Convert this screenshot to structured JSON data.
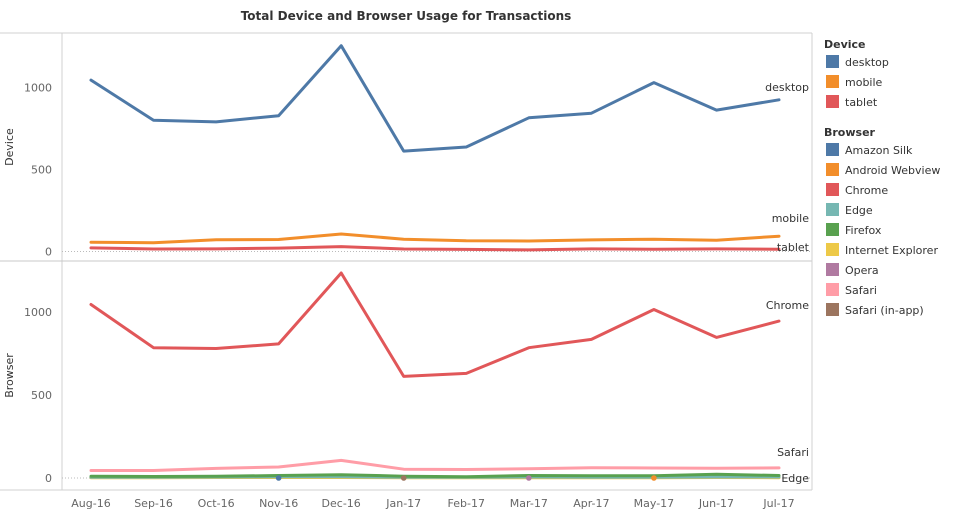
{
  "chart_data": {
    "type": "line",
    "title": "Total Device and Browser Usage for Transactions",
    "categories": [
      "Aug-16",
      "Sep-16",
      "Oct-16",
      "Nov-16",
      "Dec-16",
      "Jan-17",
      "Feb-17",
      "Mar-17",
      "Apr-17",
      "May-17",
      "Jun-17",
      "Jul-17"
    ],
    "panels": [
      {
        "ylabel": "Device",
        "ylim": [
          0,
          1330
        ],
        "yticks": [
          0,
          500,
          1000
        ],
        "series": [
          {
            "name": "desktop",
            "color": "#4e79a7",
            "values": [
              1045,
              800,
              790,
              828,
              1255,
              612,
              637,
              815,
              843,
              1030,
              862,
              925
            ]
          },
          {
            "name": "mobile",
            "color": "#f28e2b",
            "values": [
              57,
              53,
              72,
              73,
              107,
              75,
              65,
              64,
              71,
              75,
              69,
              93
            ]
          },
          {
            "name": "tablet",
            "color": "#e15759",
            "values": [
              22,
              15,
              16,
              21,
              30,
              15,
              13,
              10,
              16,
              14,
              16,
              14
            ]
          }
        ],
        "end_labels": [
          "desktop",
          "mobile",
          "tablet"
        ]
      },
      {
        "ylabel": "Browser",
        "ylim": [
          0,
          1250
        ],
        "yticks": [
          0,
          500,
          1000
        ],
        "series": [
          {
            "name": "Chrome",
            "color": "#e15759",
            "values": [
              1045,
              785,
              780,
              808,
              1235,
              612,
              630,
              785,
              835,
              1015,
              847,
              945
            ]
          },
          {
            "name": "Safari",
            "color": "#ff9da7",
            "values": [
              45,
              45,
              58,
              66,
              106,
              53,
              51,
              56,
              62,
              60,
              59,
              61
            ]
          },
          {
            "name": "Firefox",
            "color": "#59a14f",
            "values": [
              10,
              9,
              10,
              15,
              20,
              11,
              8,
              15,
              13,
              13,
              22,
              15
            ]
          },
          {
            "name": "Edge",
            "color": "#76b7b2",
            "values": [
              5,
              5,
              6,
              7,
              8,
              4,
              4,
              6,
              5,
              5,
              6,
              6
            ]
          },
          {
            "name": "Internet Explorer",
            "color": "#edc948",
            "values": [
              2,
              2,
              3,
              3,
              3,
              2,
              2,
              2,
              2,
              2,
              3,
              2
            ]
          }
        ],
        "markers": [
          {
            "series": "Amazon Silk",
            "color": "#4e79a7",
            "x": "Nov-16",
            "y": 0
          },
          {
            "series": "Android Webview",
            "color": "#f28e2b",
            "x": "May-17",
            "y": 0
          },
          {
            "series": "Opera",
            "color": "#b07aa1",
            "x": "Mar-17",
            "y": 0
          },
          {
            "series": "Safari (in-app)",
            "color": "#9c755f",
            "x": "Jan-17",
            "y": 0
          }
        ],
        "end_labels": [
          "Chrome",
          "Safari",
          "Edge"
        ]
      }
    ],
    "legends": [
      {
        "title": "Device",
        "items": [
          {
            "label": "desktop",
            "color": "#4e79a7"
          },
          {
            "label": "mobile",
            "color": "#f28e2b"
          },
          {
            "label": "tablet",
            "color": "#e15759"
          }
        ]
      },
      {
        "title": "Browser",
        "items": [
          {
            "label": "Amazon Silk",
            "color": "#4e79a7"
          },
          {
            "label": "Android Webview",
            "color": "#f28e2b"
          },
          {
            "label": "Chrome",
            "color": "#e15759"
          },
          {
            "label": "Edge",
            "color": "#76b7b2"
          },
          {
            "label": "Firefox",
            "color": "#59a14f"
          },
          {
            "label": "Internet Explorer",
            "color": "#edc948"
          },
          {
            "label": "Opera",
            "color": "#b07aa1"
          },
          {
            "label": "Safari",
            "color": "#ff9da7"
          },
          {
            "label": "Safari (in-app)",
            "color": "#9c755f"
          }
        ]
      }
    ],
    "grid": false,
    "legend_position": "right"
  }
}
